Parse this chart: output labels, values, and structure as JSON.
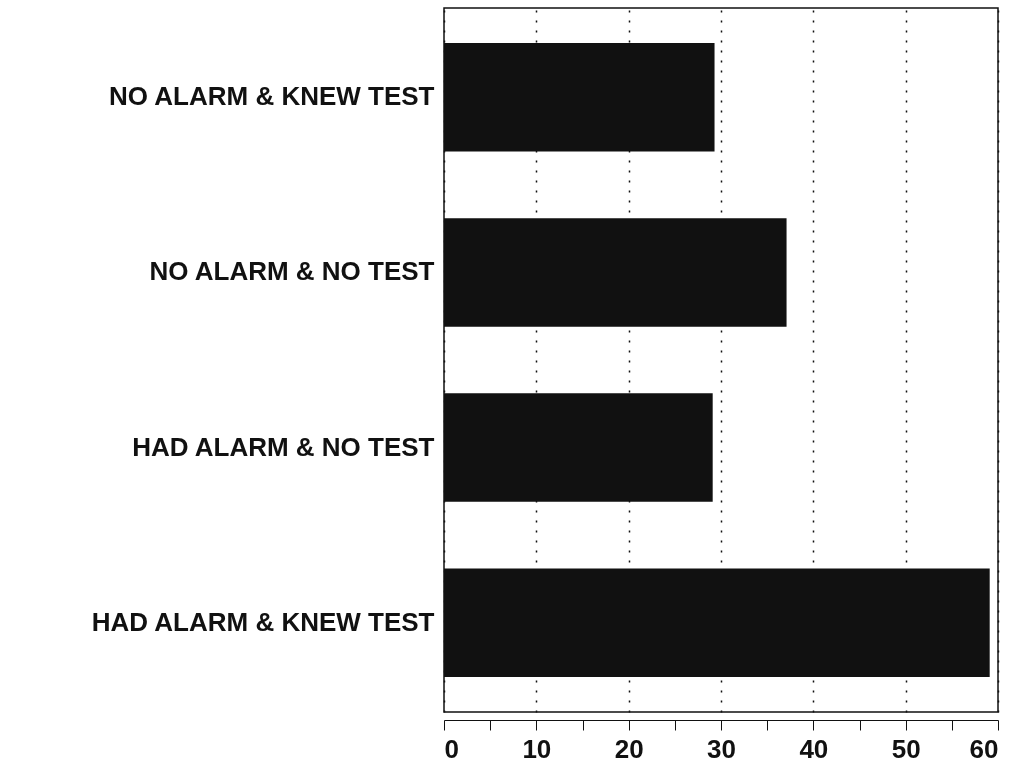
{
  "chart_data": {
    "type": "bar",
    "orientation": "horizontal",
    "categories": [
      "NO ALARM & KNEW TEST",
      "NO ALARM & NO TEST",
      "HAD ALARM & NO TEST",
      "HAD ALARM & KNEW TEST"
    ],
    "values": [
      29.3,
      37.1,
      29.1,
      59.1
    ],
    "color": "#111111",
    "xlim": [
      0,
      60
    ],
    "xticks": [
      0,
      {
        "value": 5,
        "label": null
      },
      10,
      {
        "value": 15,
        "label": null
      },
      20,
      {
        "value": 25,
        "label": null
      },
      30,
      {
        "value": 35,
        "label": null
      },
      40,
      {
        "value": 45,
        "label": null
      },
      50,
      {
        "value": 55,
        "label": null
      },
      60
    ],
    "grid": "x"
  }
}
